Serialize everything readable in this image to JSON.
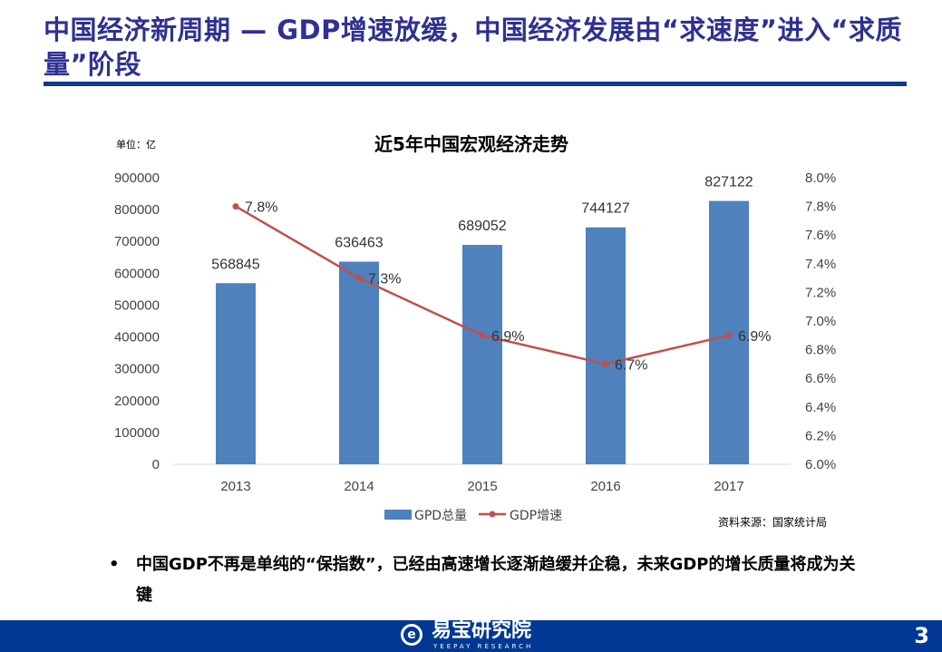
{
  "title": "中国经济新周期 — GDP增速放缓，中国经济发展由“求速度”进入“求质量”阶段",
  "chart_data": {
    "type": "bar+line",
    "title": "近5年中国宏观经济走势",
    "unit_label": "单位：亿",
    "categories": [
      "2013",
      "2014",
      "2015",
      "2016",
      "2017"
    ],
    "series": [
      {
        "name": "GPD总量",
        "type": "bar",
        "axis": "left",
        "color": "#4f81bd",
        "values": [
          568845,
          636463,
          689052,
          744127,
          827122
        ],
        "labels": [
          "568845",
          "636463",
          "689052",
          "744127",
          "827122"
        ]
      },
      {
        "name": "GDP增速",
        "type": "line",
        "axis": "right",
        "color": "#c0504d",
        "values": [
          7.8,
          7.3,
          6.9,
          6.7,
          6.9
        ],
        "labels": [
          "7.8%",
          "7.3%",
          "6.9%",
          "6.7%",
          "6.9%"
        ]
      }
    ],
    "left_axis": {
      "range": [
        0,
        900000
      ],
      "ticks": [
        "0",
        "100000",
        "200000",
        "300000",
        "400000",
        "500000",
        "600000",
        "700000",
        "800000",
        "900000"
      ]
    },
    "right_axis": {
      "range": [
        6.0,
        8.0
      ],
      "ticks": [
        "6.0%",
        "6.2%",
        "6.4%",
        "6.6%",
        "6.8%",
        "7.0%",
        "7.2%",
        "7.4%",
        "7.6%",
        "7.8%",
        "8.0%"
      ]
    },
    "legend_placement": "bottom",
    "grid": false
  },
  "source": "资料来源：国家统计局",
  "bullet": {
    "dot": "•",
    "text": "中国GDP不再是单纯的“保指数”，已经由高速增长逐渐趋缓并企稳，未来GDP的增长质量将成为关键"
  },
  "footer": {
    "logo_cn": "易宝研究院",
    "logo_en": "YEEPAY RESEARCH",
    "page": "3"
  },
  "colors": {
    "title": "#2e3192",
    "footer": "#003893"
  }
}
